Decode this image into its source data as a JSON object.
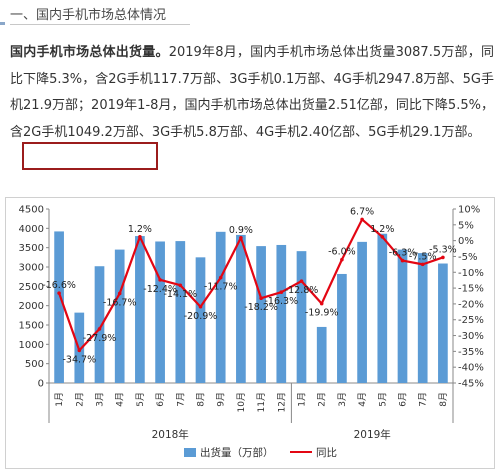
{
  "section": {
    "title": "一、国内手机市场总体情况"
  },
  "article": {
    "lead": "国内手机市场总体出货量。",
    "body": "2019年8月，国内手机市场总体出货量3087.5万部，同比下降5.3%，含2G手机117.7万部、3G手机0.1万部、4G手机2947.8万部、5G手机21.9万部；2019年1-8月，国内手机市场总体出货量2.51亿部，同比下降5.5%，含2G手机1049.2万部、3G手机5.8万部、4G手机2.40亿部、",
    "highlight": "5G手机29.1万部。"
  },
  "colors": {
    "bar": "#5b9bd5",
    "line": "#e30613",
    "highlight_border": "#9b1c1c"
  },
  "chart_data": {
    "type": "bar",
    "categories": [
      "1月",
      "2月",
      "3月",
      "4月",
      "5月",
      "6月",
      "7月",
      "8月",
      "9月",
      "10月",
      "11月",
      "12月",
      "1月",
      "2月",
      "3月",
      "4月",
      "5月",
      "6月",
      "7月",
      "8月"
    ],
    "year_groups": [
      {
        "label": "2018年",
        "count": 12
      },
      {
        "label": "2019年",
        "count": 8
      }
    ],
    "series": [
      {
        "name": "出货量（万部）",
        "type": "bar",
        "axis": "left",
        "values": [
          3920,
          1820,
          3020,
          3450,
          3800,
          3660,
          3670,
          3250,
          3910,
          3830,
          3540,
          3570,
          3410,
          1450,
          2820,
          3650,
          3860,
          3450,
          3360,
          3090
        ]
      },
      {
        "name": "同比",
        "type": "line",
        "axis": "right",
        "values": [
          -16.6,
          -34.7,
          -27.9,
          -16.7,
          1.2,
          -12.4,
          -14.1,
          -20.9,
          -11.7,
          0.9,
          -18.2,
          -16.3,
          -12.8,
          -19.9,
          -6.0,
          6.7,
          1.2,
          -6.3,
          -7.5,
          -5.3
        ],
        "labels": [
          "-16.6%",
          "-34.7%",
          "-27.9%",
          "-16.7%",
          "1.2%",
          "-12.4%",
          "-14.1%",
          "-20.9%",
          "-11.7%",
          "0.9%",
          "-18.2%",
          "-16.3%",
          "-12.8%",
          "-19.9%",
          "-6.0%",
          "6.7%",
          "1.2%",
          "-6.3%",
          "-7.5%",
          "-5.3%"
        ]
      }
    ],
    "y_left": {
      "min": 0,
      "max": 4500,
      "ticks": [
        "0",
        "500",
        "1000",
        "1500",
        "2000",
        "2500",
        "3000",
        "3500",
        "4000",
        "4500"
      ]
    },
    "y_right": {
      "min": -45,
      "max": 10,
      "ticks": [
        "-45%",
        "-40%",
        "-35%",
        "-30%",
        "-25%",
        "-20%",
        "-15%",
        "-10%",
        "-5%",
        "0%",
        "5%",
        "10%"
      ]
    },
    "legend": {
      "position": "bottom",
      "bar_label": "出货量（万部）",
      "line_label": "同比"
    },
    "grid": false
  }
}
